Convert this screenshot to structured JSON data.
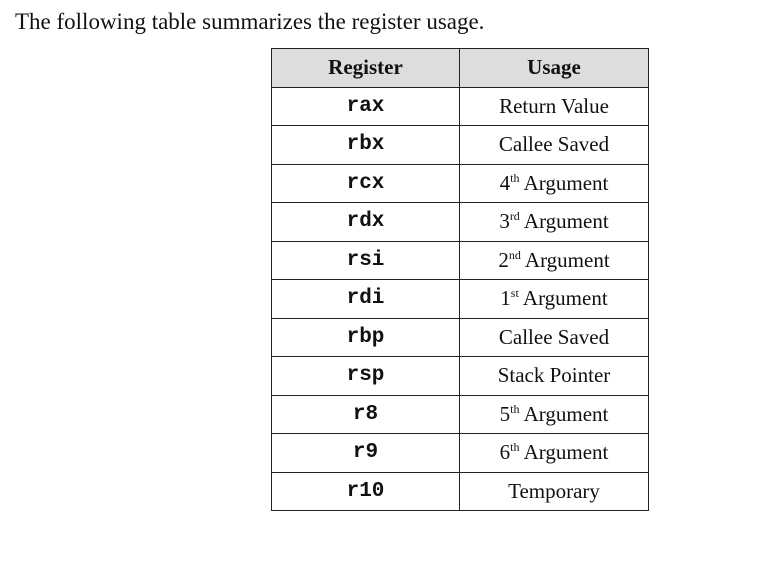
{
  "intro": "The following table summarizes the register usage.",
  "table": {
    "headers": [
      "Register",
      "Usage"
    ],
    "rows": [
      {
        "register": "rax",
        "usage": "Return Value"
      },
      {
        "register": "rbx",
        "usage": "Callee Saved"
      },
      {
        "register": "rcx",
        "ord_num": "4",
        "ord_sup": "th",
        "usage": "Argument"
      },
      {
        "register": "rdx",
        "ord_num": "3",
        "ord_sup": "rd",
        "usage": "Argument"
      },
      {
        "register": "rsi",
        "ord_num": "2",
        "ord_sup": "nd",
        "usage": "Argument"
      },
      {
        "register": "rdi",
        "ord_num": "1",
        "ord_sup": "st",
        "usage": "Argument"
      },
      {
        "register": "rbp",
        "usage": "Callee Saved"
      },
      {
        "register": "rsp",
        "usage": "Stack Pointer"
      },
      {
        "register": "r8",
        "ord_num": "5",
        "ord_sup": "th",
        "usage": "Argument"
      },
      {
        "register": "r9",
        "ord_num": "6",
        "ord_sup": "th",
        "usage": "Argument"
      },
      {
        "register": "r10",
        "usage": "Temporary"
      }
    ]
  },
  "colors": {
    "header_background": "#dddddd",
    "border": "#222222",
    "text": "#111111"
  }
}
